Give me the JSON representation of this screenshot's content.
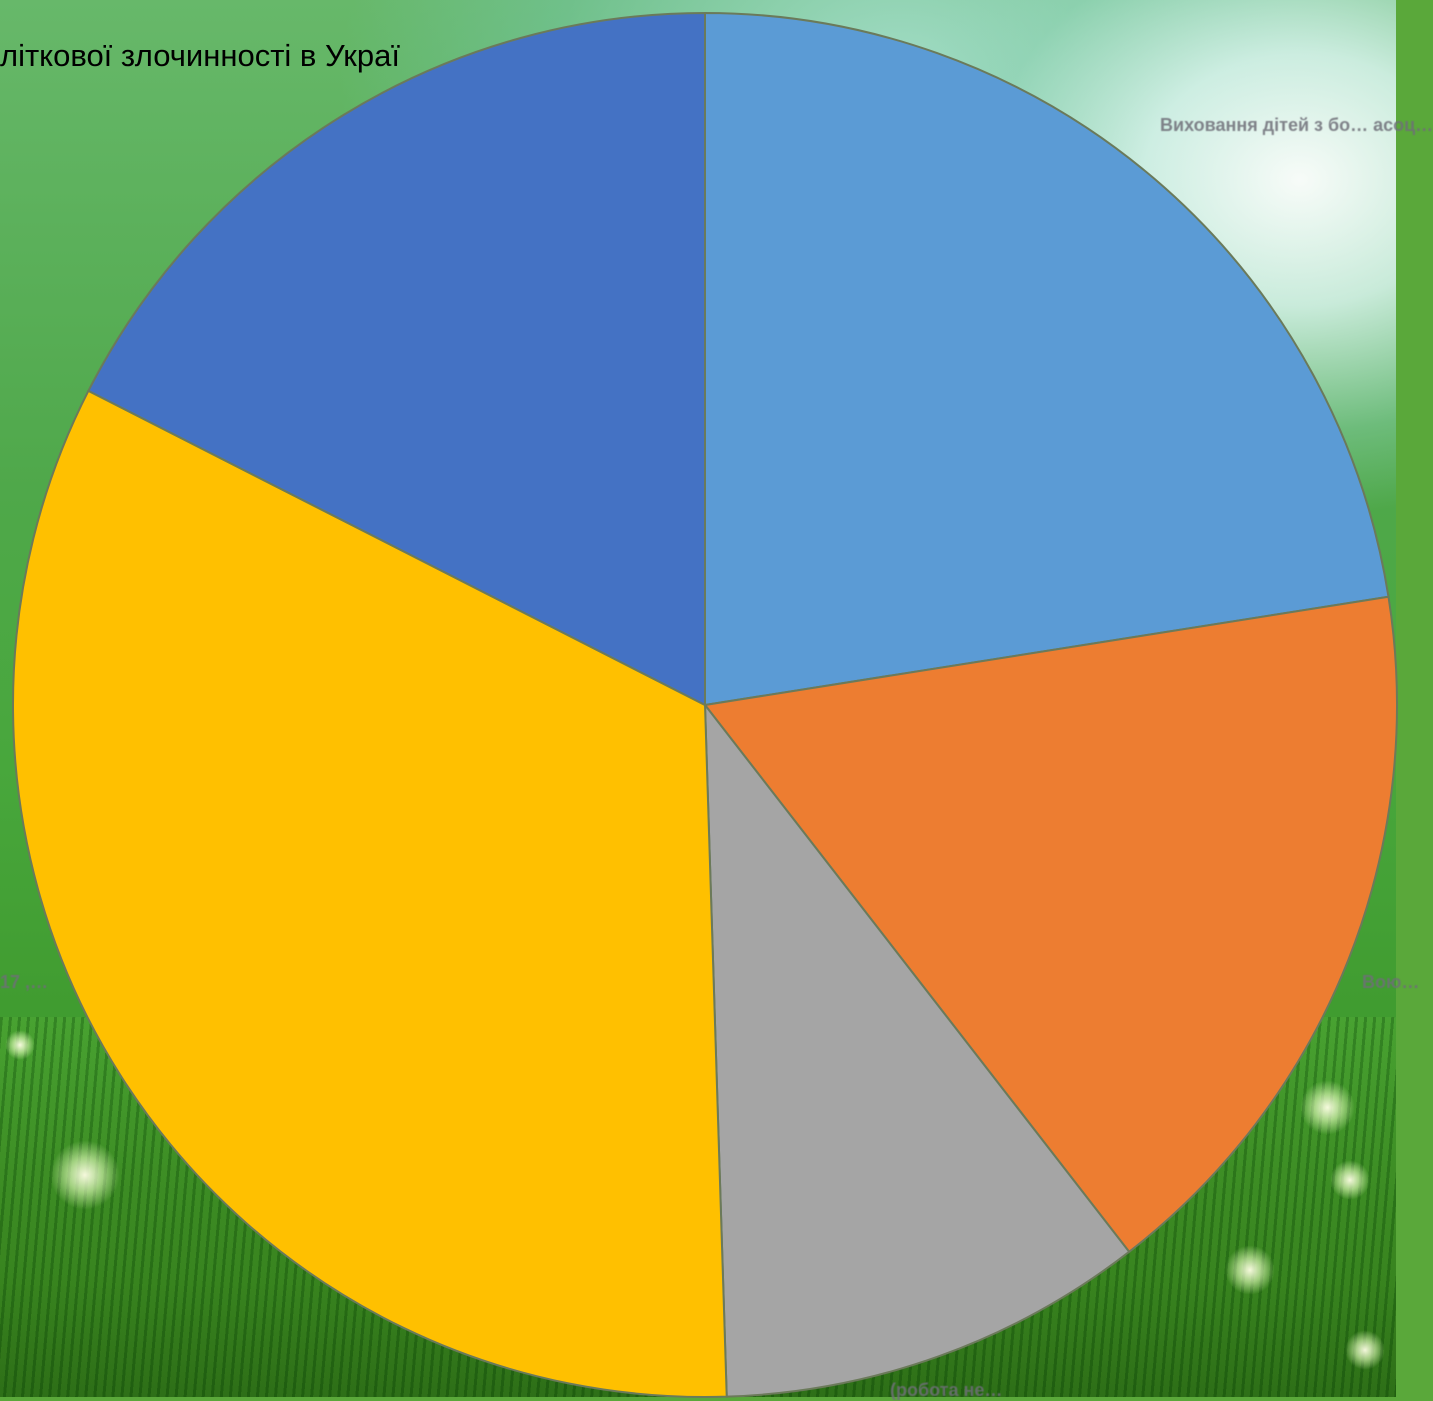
{
  "chart_data": {
    "type": "pie",
    "title": "літкової злочинності в Украї",
    "labels": [
      "Виховання дітей з бо… асоц…",
      "Вою…",
      "(робота не…",
      "…, 17",
      ""
    ],
    "values": [
      22.5,
      17,
      10,
      33,
      17.5
    ],
    "colors": [
      "#5b9bd5",
      "#ed7d31",
      "#a5a5a5",
      "#ffc000",
      "#4472c4"
    ],
    "start_angle_deg": 0,
    "direction": "clockwise",
    "legend": "none"
  }
}
